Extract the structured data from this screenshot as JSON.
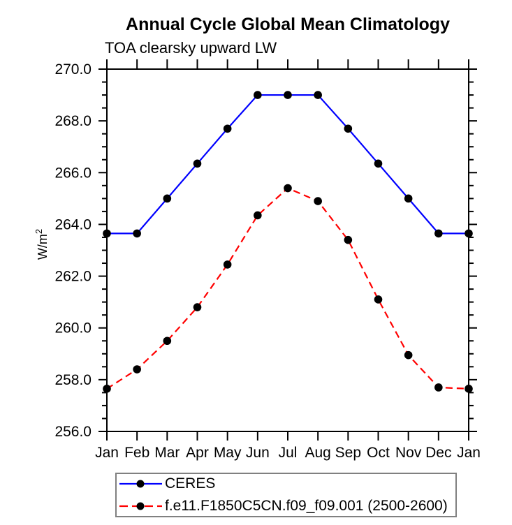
{
  "title": "Annual Cycle Global Mean Climatology",
  "subtitle": "TOA clearsky upward LW",
  "yaxis": {
    "label_base": "W/m",
    "label_sup": "2"
  },
  "chart_data": {
    "type": "line",
    "ylabel": "W/m²",
    "xlabel": "",
    "categories": [
      "Jan",
      "Feb",
      "Mar",
      "Apr",
      "May",
      "Jun",
      "Jul",
      "Aug",
      "Sep",
      "Oct",
      "Nov",
      "Dec",
      "Jan"
    ],
    "series": [
      {
        "name": "CERES",
        "color": "#0000ff",
        "linestyle": "solid",
        "marker": "filled-circle",
        "values": [
          263.65,
          263.65,
          265.0,
          266.35,
          267.7,
          269.0,
          269.0,
          269.0,
          267.7,
          266.35,
          265.0,
          263.65,
          263.65
        ]
      },
      {
        "name": "f.e11.F1850C5CN.f09_f09.001 (2500-2600)",
        "color": "#ff0000",
        "linestyle": "dashed",
        "marker": "filled-circle",
        "values": [
          257.65,
          258.4,
          259.5,
          260.8,
          262.45,
          264.35,
          265.4,
          264.9,
          263.4,
          261.1,
          258.95,
          257.7,
          257.65
        ]
      }
    ],
    "ylim": [
      256.0,
      270.0
    ],
    "ytick_major": [
      256,
      258,
      260,
      262,
      264,
      266,
      268,
      270
    ],
    "ytick_labels": [
      "256.0",
      "258.0",
      "260.0",
      "262.0",
      "264.0",
      "266.0",
      "268.0",
      "270.0"
    ],
    "ytick_minor_step": 0.5,
    "marker_color": "#000000",
    "axis_color": "#000000",
    "grid": false,
    "legend_position": "bottom-left-box"
  }
}
